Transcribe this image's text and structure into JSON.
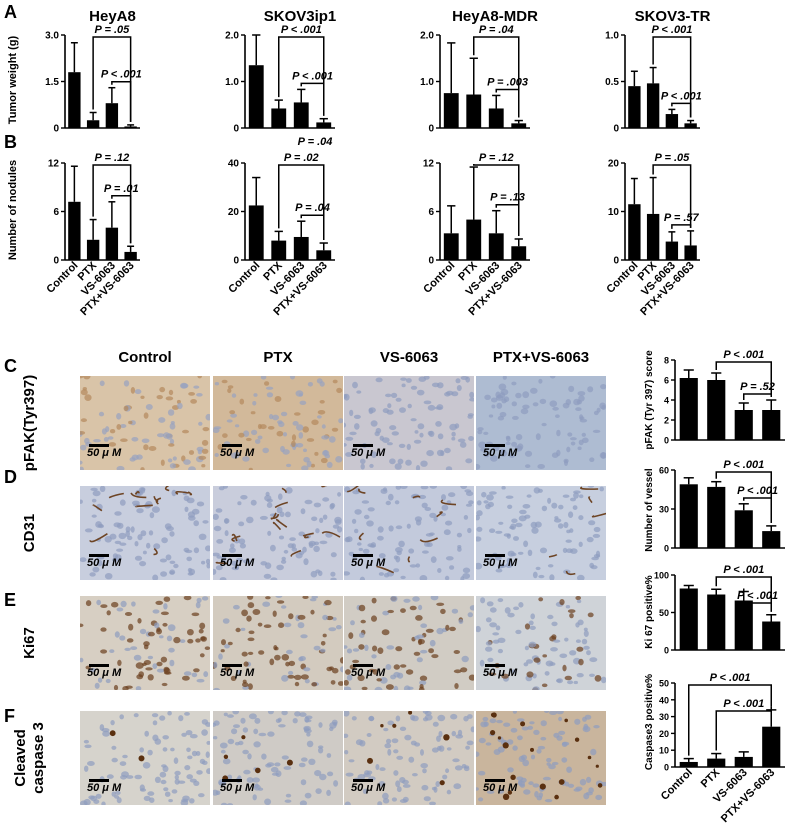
{
  "panel_letters": [
    "A",
    "B",
    "C",
    "D",
    "E",
    "F"
  ],
  "groups": [
    "Control",
    "PTX",
    "VS-6063",
    "PTX+VS-6063"
  ],
  "top_titles": [
    "HeyA8",
    "SKOV3ip1",
    "HeyA8-MDR",
    "SKOV3-TR"
  ],
  "row_a_ylabel": "Tumor weight (g)",
  "row_b_ylabel": "Number of nodules",
  "micro_rows": [
    "pFAK(Tyr397)",
    "CD31",
    "Ki67",
    "Cleaved caspase 3"
  ],
  "micro_rows_split": [
    [
      "pFAK(Tyr397)"
    ],
    [
      "CD31"
    ],
    [
      "Ki67"
    ],
    [
      "Cleaved",
      "caspase 3"
    ]
  ],
  "scale_label": "50 μ M",
  "colors": {
    "bar": "#000000",
    "stain_brown": "#8a5a2b",
    "tissue_blue": "#b7c3d6"
  },
  "chart_data": [
    {
      "id": "A1",
      "type": "bar",
      "title": "HeyA8",
      "categories": [
        "Control",
        "PTX",
        "VS-6063",
        "PTX+VS-6063"
      ],
      "values": [
        1.8,
        0.25,
        0.8,
        0.05
      ],
      "errors": [
        0.95,
        0.25,
        0.5,
        0.05
      ],
      "ylim": [
        0,
        3.0
      ],
      "yticks": [
        "0",
        "1.5",
        "3.0"
      ],
      "ylabel": "Tumor weight (g)",
      "annotations": [
        {
          "a": 1,
          "b": 3,
          "text": "P = .05",
          "level": 0
        },
        {
          "a": 2,
          "b": 3,
          "text": "P < .001",
          "level": 1
        }
      ]
    },
    {
      "id": "A2",
      "type": "bar",
      "title": "SKOV3ip1",
      "categories": [
        "Control",
        "PTX",
        "VS-6063",
        "PTX+VS-6063"
      ],
      "values": [
        1.35,
        0.42,
        0.55,
        0.12
      ],
      "errors": [
        0.65,
        0.18,
        0.28,
        0.08
      ],
      "ylim": [
        0,
        2.0
      ],
      "yticks": [
        "0",
        "1.0",
        "2.0"
      ],
      "annotations": [
        {
          "a": 1,
          "b": 3,
          "text": "P < .001",
          "level": 0
        },
        {
          "a": 2,
          "b": 3,
          "text": "P < .001",
          "level": 1
        }
      ]
    },
    {
      "id": "A3",
      "type": "bar",
      "title": "HeyA8-MDR",
      "categories": [
        "Control",
        "PTX",
        "VS-6063",
        "PTX+VS-6063"
      ],
      "values": [
        0.75,
        0.72,
        0.42,
        0.1
      ],
      "errors": [
        1.08,
        0.78,
        0.28,
        0.06
      ],
      "ylim": [
        0,
        2.0
      ],
      "yticks": [
        "0",
        "1.0",
        "2.0"
      ],
      "annotations": [
        {
          "a": 1,
          "b": 3,
          "text": "P = .04",
          "level": 0
        },
        {
          "a": 2,
          "b": 3,
          "text": "P = .003",
          "level": 1
        }
      ]
    },
    {
      "id": "A4",
      "type": "bar",
      "title": "SKOV3-TR",
      "categories": [
        "Control",
        "PTX",
        "VS-6063",
        "PTX+VS-6063"
      ],
      "values": [
        0.45,
        0.48,
        0.15,
        0.05
      ],
      "errors": [
        0.16,
        0.17,
        0.05,
        0.03
      ],
      "ylim": [
        0,
        1.0
      ],
      "yticks": [
        "0",
        "0.5",
        "1.0"
      ],
      "annotations": [
        {
          "a": 1,
          "b": 3,
          "text": "P < .001",
          "level": 0
        },
        {
          "a": 2,
          "b": 3,
          "text": "P < .001",
          "level": 1
        }
      ]
    },
    {
      "id": "B1",
      "type": "bar",
      "categories": [
        "Control",
        "PTX",
        "VS-6063",
        "PTX+VS-6063"
      ],
      "values": [
        7.2,
        2.5,
        4.0,
        1.0
      ],
      "errors": [
        4.4,
        2.5,
        3.2,
        0.7
      ],
      "ylim": [
        0,
        12
      ],
      "yticks": [
        "0",
        "6",
        "12"
      ],
      "ylabel": "Number of nodules",
      "annotations": [
        {
          "a": 1,
          "b": 3,
          "text": "P = .12",
          "level": 0
        },
        {
          "a": 2,
          "b": 3,
          "text": "P = .01",
          "level": 1
        }
      ]
    },
    {
      "id": "B2",
      "type": "bar",
      "categories": [
        "Control",
        "PTX",
        "VS-6063",
        "PTX+VS-6063"
      ],
      "values": [
        22.5,
        8.0,
        9.5,
        4.0
      ],
      "errors": [
        11.5,
        3.8,
        6.5,
        3.0
      ],
      "ylim": [
        0,
        40
      ],
      "yticks": [
        "0",
        "20",
        "40"
      ],
      "annotations": [
        {
          "a": 1,
          "b": 3,
          "text": "P = .02",
          "level": 0
        },
        {
          "a": 2,
          "b": 3,
          "text": "P = .04",
          "level": 1
        },
        {
          "text": "P = .04",
          "level": "top"
        }
      ]
    },
    {
      "id": "B3",
      "type": "bar",
      "categories": [
        "Control",
        "PTX",
        "VS-6063",
        "PTX+VS-6063"
      ],
      "values": [
        3.3,
        5.0,
        3.3,
        1.7
      ],
      "errors": [
        3.4,
        6.5,
        2.8,
        0.9
      ],
      "ylim": [
        0,
        12
      ],
      "yticks": [
        "0",
        "6",
        "12"
      ],
      "annotations": [
        {
          "a": 1,
          "b": 3,
          "text": "P = .12",
          "level": 0
        },
        {
          "a": 2,
          "b": 3,
          "text": "P = .13",
          "level": 1
        }
      ]
    },
    {
      "id": "B4",
      "type": "bar",
      "categories": [
        "Control",
        "PTX",
        "VS-6063",
        "PTX+VS-6063"
      ],
      "values": [
        11.5,
        9.5,
        3.8,
        3.0
      ],
      "errors": [
        5.3,
        7.5,
        2.0,
        3.0
      ],
      "ylim": [
        0,
        20
      ],
      "yticks": [
        "0",
        "10",
        "20"
      ],
      "annotations": [
        {
          "a": 1,
          "b": 3,
          "text": "P = .05",
          "level": 0
        },
        {
          "a": 2,
          "b": 3,
          "text": "P = .57",
          "level": 1
        }
      ]
    },
    {
      "id": "C",
      "type": "bar",
      "categories": [
        "Control",
        "PTX",
        "VS-6063",
        "PTX+VS-6063"
      ],
      "values": [
        6.2,
        6.0,
        3.0,
        3.0
      ],
      "errors": [
        0.8,
        0.7,
        0.7,
        1.0
      ],
      "ylim": [
        0,
        8
      ],
      "yticks": [
        "0",
        "2",
        "4",
        "6",
        "8"
      ],
      "ylabel": "pFAK (Tyr 397) score",
      "annotations": [
        {
          "a": 1,
          "b": 3,
          "text": "P < .001",
          "level": 0
        },
        {
          "a": 2,
          "b": 3,
          "text": "P = .52",
          "level": 1
        }
      ]
    },
    {
      "id": "D",
      "type": "bar",
      "categories": [
        "Control",
        "PTX",
        "VS-6063",
        "PTX+VS-6063"
      ],
      "values": [
        49,
        47,
        29,
        13
      ],
      "errors": [
        5,
        4,
        5,
        4
      ],
      "ylim": [
        0,
        60
      ],
      "yticks": [
        "0",
        "30",
        "60"
      ],
      "ylabel": "Number of vessel",
      "annotations": [
        {
          "a": 1,
          "b": 3,
          "text": "P < .001",
          "level": 0
        },
        {
          "a": 2,
          "b": 3,
          "text": "P < .001",
          "level": 1
        }
      ]
    },
    {
      "id": "E",
      "type": "bar",
      "categories": [
        "Control",
        "PTX",
        "VS-6063",
        "PTX+VS-6063"
      ],
      "values": [
        82,
        74,
        66,
        38
      ],
      "errors": [
        4,
        7,
        12,
        9
      ],
      "ylim": [
        0,
        100
      ],
      "yticks": [
        "0",
        "50",
        "100"
      ],
      "ylabel": "Ki 67 positive%",
      "annotations": [
        {
          "a": 1,
          "b": 3,
          "text": "P < .001",
          "level": 0
        },
        {
          "a": 2,
          "b": 3,
          "text": "P < .001",
          "level": 1
        }
      ]
    },
    {
      "id": "F",
      "type": "bar",
      "categories": [
        "Control",
        "PTX",
        "VS-6063",
        "PTX+VS-6063"
      ],
      "values": [
        3,
        5,
        6,
        24
      ],
      "errors": [
        2,
        3,
        3,
        10
      ],
      "ylim": [
        0,
        50
      ],
      "yticks": [
        "0",
        "10",
        "20",
        "30",
        "40",
        "50"
      ],
      "ylabel": "Caspase3 positive%",
      "annotations": [
        {
          "a": 0,
          "b": 3,
          "text": "P < .001",
          "level": 0
        },
        {
          "a": 1,
          "b": 3,
          "text": "P < .001",
          "level": 1
        }
      ]
    }
  ]
}
